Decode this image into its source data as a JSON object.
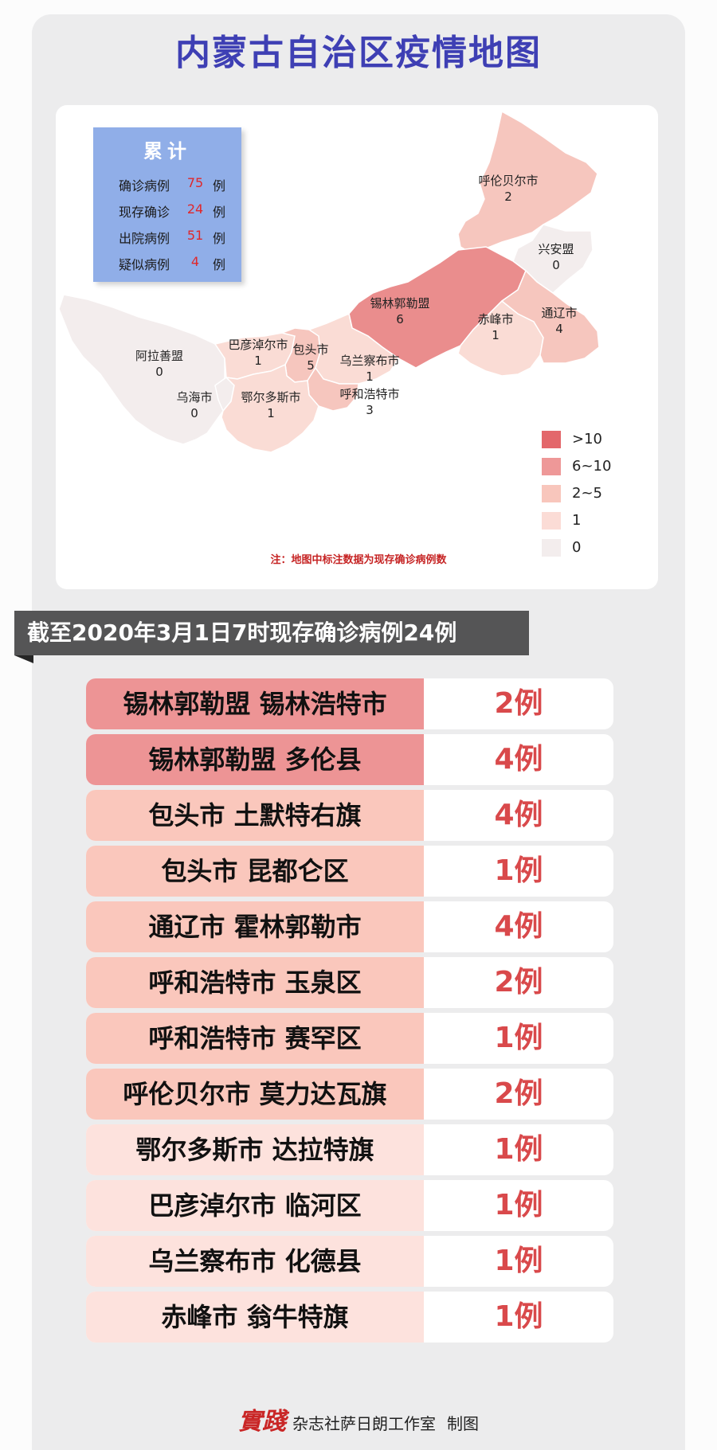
{
  "title": "内蒙古自治区疫情地图",
  "stats": {
    "title": "累计",
    "rows": [
      {
        "label": "确诊病例",
        "value": "75",
        "unit": "例"
      },
      {
        "label": "现存确诊",
        "value": "24",
        "unit": "例"
      },
      {
        "label": "出院病例",
        "value": "51",
        "unit": "例"
      },
      {
        "label": "疑似病例",
        "value": "4",
        "unit": "例"
      }
    ]
  },
  "map": {
    "regions": [
      {
        "name": "呼伦贝尔市",
        "count": "2",
        "color": "#f6c6be"
      },
      {
        "name": "兴安盟",
        "count": "0",
        "color": "#f3eded"
      },
      {
        "name": "锡林郭勒盟",
        "count": "6",
        "color": "#ea8d8d"
      },
      {
        "name": "赤峰市",
        "count": "1",
        "color": "#fadcd5"
      },
      {
        "name": "通辽市",
        "count": "4",
        "color": "#f6c6be"
      },
      {
        "name": "阿拉善盟",
        "count": "0",
        "color": "#f3eded"
      },
      {
        "name": "巴彦淖尔市",
        "count": "1",
        "color": "#fadcd5"
      },
      {
        "name": "包头市",
        "count": "5",
        "color": "#f6c6be"
      },
      {
        "name": "乌兰察布市",
        "count": "1",
        "color": "#fadcd5"
      },
      {
        "name": "呼和浩特市",
        "count": "3",
        "color": "#f6c6be"
      },
      {
        "name": "乌海市",
        "count": "0",
        "color": "#f3eded"
      },
      {
        "name": "鄂尔多斯市",
        "count": "1",
        "color": "#fadcd5"
      }
    ],
    "legend": [
      {
        "label": ">10",
        "color": "#e3676b"
      },
      {
        "label": "6~10",
        "color": "#ee9898"
      },
      {
        "label": "2~5",
        "color": "#f8c6bc"
      },
      {
        "label": "1",
        "color": "#fbdcd6"
      },
      {
        "label": "0",
        "color": "#f3eded"
      }
    ],
    "note": "注：地图中标注数据为现存确诊病例数"
  },
  "banner": "截至2020年3月1日7时现存确诊病例24例",
  "cases": [
    {
      "name": "锡林郭勒盟 锡林浩特市",
      "count": "2例",
      "color": "#ed9495"
    },
    {
      "name": "锡林郭勒盟 多伦县",
      "count": "4例",
      "color": "#ed9495"
    },
    {
      "name": "包头市 土默特右旗",
      "count": "4例",
      "color": "#fac7bc"
    },
    {
      "name": "包头市 昆都仑区",
      "count": "1例",
      "color": "#fac7bc"
    },
    {
      "name": "通辽市 霍林郭勒市",
      "count": "4例",
      "color": "#fac7bc"
    },
    {
      "name": "呼和浩特市 玉泉区",
      "count": "2例",
      "color": "#fac7bc"
    },
    {
      "name": "呼和浩特市 赛罕区",
      "count": "1例",
      "color": "#fac7bc"
    },
    {
      "name": "呼伦贝尔市 莫力达瓦旗",
      "count": "2例",
      "color": "#fac7bc"
    },
    {
      "name": "鄂尔多斯市 达拉特旗",
      "count": "1例",
      "color": "#fde2dd"
    },
    {
      "name": "巴彦淖尔市 临河区",
      "count": "1例",
      "color": "#fde2dd"
    },
    {
      "name": "乌兰察布市 化德县",
      "count": "1例",
      "color": "#fde2dd"
    },
    {
      "name": "赤峰市 翁牛特旗",
      "count": "1例",
      "color": "#fde2dd"
    }
  ],
  "footer": {
    "logo": "實踐",
    "credit": "杂志社萨日朗工作室",
    "suffix": "制图"
  }
}
